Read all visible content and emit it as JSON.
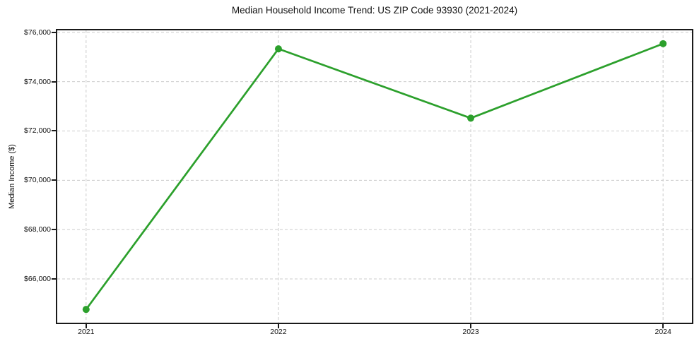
{
  "figure": {
    "background": "#ffffff"
  },
  "chart_data": {
    "type": "line",
    "title": "Median Household Income Trend: US ZIP Code 93930 (2021-2024)",
    "xlabel": "",
    "ylabel": "Median Income ($)",
    "x": [
      2021,
      2022,
      2023,
      2024
    ],
    "x_tick_labels": [
      "2021",
      "2022",
      "2023",
      "2024"
    ],
    "series": [
      {
        "name": "Median Household Income",
        "values": [
          64765,
          75330,
          72520,
          75540
        ],
        "color": "#2ca02c",
        "marker": "circle",
        "marker_size": 10,
        "line_width": 2.7,
        "line_style": "solid"
      }
    ],
    "y_ticks": [
      66000,
      68000,
      70000,
      72000,
      74000,
      76000
    ],
    "y_tick_labels": [
      "$66,000",
      "$68,000",
      "$70,000",
      "$72,000",
      "$74,000",
      "$76,000"
    ],
    "xlim": [
      2020.85,
      2024.15
    ],
    "ylim": [
      64226,
      76079
    ],
    "grid": true,
    "grid_style": "dashed",
    "legend": false,
    "colors": {
      "line": "#2ca02c",
      "grid": "#cccccc",
      "axis": "#1a1a1a",
      "text": "#111111",
      "background": "#ffffff"
    }
  }
}
